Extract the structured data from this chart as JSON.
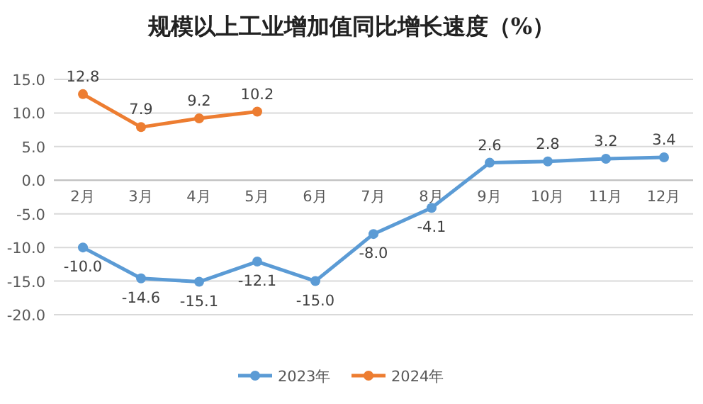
{
  "chart_data": {
    "type": "line",
    "title": "规模以上工业增加值同比增长速度（%）",
    "categories": [
      "2月",
      "3月",
      "4月",
      "5月",
      "6月",
      "7月",
      "8月",
      "9月",
      "10月",
      "11月",
      "12月"
    ],
    "series": [
      {
        "name": "2023年",
        "color": "#5b9bd5",
        "values": [
          -10.0,
          -14.6,
          -15.1,
          -12.1,
          -15.0,
          -8.0,
          -4.1,
          2.6,
          2.8,
          3.2,
          3.4
        ],
        "value_labels": [
          "-10.0",
          "-14.6",
          "-15.1",
          "-12.1",
          "-15.0",
          "-8.0",
          "-4.1",
          "2.6",
          "2.8",
          "3.2",
          "3.4"
        ]
      },
      {
        "name": "2024年",
        "color": "#ed7d31",
        "values": [
          12.8,
          7.9,
          9.2,
          10.2,
          null,
          null,
          null,
          null,
          null,
          null,
          null
        ],
        "value_labels": [
          "12.8",
          "7.9",
          "9.2",
          "10.2",
          null,
          null,
          null,
          null,
          null,
          null,
          null
        ]
      }
    ],
    "ylim": [
      -20,
      15
    ],
    "yticks": [
      {
        "value": -20,
        "label": "-20.0"
      },
      {
        "value": -15,
        "label": "-15.0"
      },
      {
        "value": -10,
        "label": "-10.0"
      },
      {
        "value": -5,
        "label": "-5.0"
      },
      {
        "value": 0,
        "label": "0.0"
      },
      {
        "value": 5,
        "label": "5.0"
      },
      {
        "value": 10,
        "label": "10.0"
      },
      {
        "value": 15,
        "label": "15.0"
      }
    ],
    "grid": "y",
    "legend": "bottom",
    "marker": "circle",
    "line_style": "solid"
  }
}
